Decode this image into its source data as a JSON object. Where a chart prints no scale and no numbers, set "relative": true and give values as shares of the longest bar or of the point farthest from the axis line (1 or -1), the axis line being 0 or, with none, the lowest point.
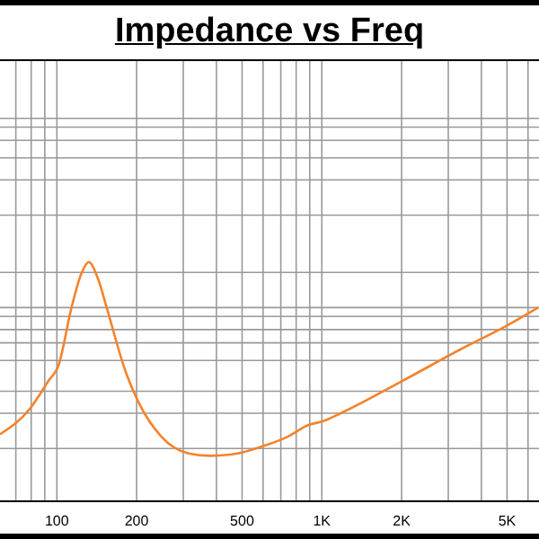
{
  "chart_data": {
    "type": "line",
    "title": "Impedance vs Freq",
    "relative": true,
    "log": "x",
    "grid": true,
    "legend": false,
    "marker": "none",
    "line_style": "solid",
    "x": [
      61,
      79,
      92.5,
      102,
      113,
      124,
      132,
      143,
      155,
      182,
      202,
      248,
      314,
      379,
      464,
      587,
      743,
      896,
      1000,
      1188,
      1990,
      3400,
      5000,
      6550
    ],
    "xlim": [
      61,
      6600
    ],
    "xticks": [
      {
        "value": 70,
        "label": null
      },
      {
        "value": 80,
        "label": null
      },
      {
        "value": 90,
        "label": null
      },
      100,
      200,
      {
        "value": 300,
        "label": null
      },
      {
        "value": 400,
        "label": null
      },
      500,
      {
        "value": 600,
        "label": null
      },
      {
        "value": 700,
        "label": null
      },
      {
        "value": 800,
        "label": null
      },
      {
        "value": 900,
        "label": null
      },
      {
        "value": 1000,
        "label": "1K"
      },
      {
        "value": 2000,
        "label": "2K"
      },
      {
        "value": 3000,
        "label": null
      },
      {
        "value": 4000,
        "label": null
      },
      {
        "value": 5000,
        "label": "5K"
      },
      {
        "value": 6000,
        "label": null
      }
    ],
    "series": [
      {
        "color": "#f5822a",
        "values": [
          0.28,
          0.386,
          0.5,
          0.576,
          0.8,
          0.955,
          1,
          0.93,
          0.8,
          0.54,
          0.42,
          0.27,
          0.2,
          0.19,
          0.197,
          0.227,
          0.27,
          0.32,
          0.333,
          0.37,
          0.5,
          0.64,
          0.735,
          0.81
        ]
      }
    ]
  }
}
